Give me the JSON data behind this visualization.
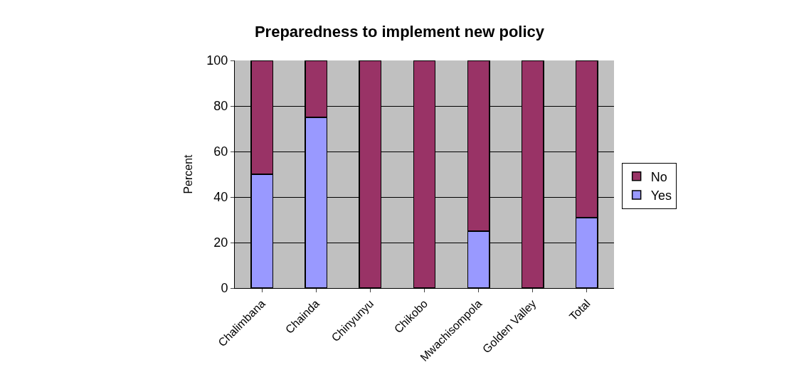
{
  "chart_data": {
    "type": "bar",
    "title": "Preparedness to implement new policy",
    "ylabel": "Percent",
    "categories": [
      "Chalimbana",
      "Chainda",
      "Chinyunyu",
      "Chikobo",
      "Mwachisompola",
      "Golden Valley",
      "Total"
    ],
    "stacked": true,
    "series": [
      {
        "name": "Yes",
        "color": "#9999ff",
        "values": [
          50,
          75,
          0,
          0,
          25,
          0,
          31
        ]
      },
      {
        "name": "No",
        "color": "#993366",
        "values": [
          50,
          25,
          100,
          100,
          75,
          100,
          69
        ]
      }
    ],
    "ylim": [
      0,
      100
    ],
    "yticks": [
      0,
      20,
      40,
      60,
      80,
      100
    ],
    "grid": "y",
    "legend": "right"
  }
}
